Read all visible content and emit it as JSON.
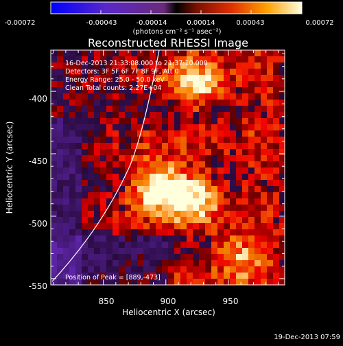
{
  "chart_data": {
    "type": "heatmap",
    "title": "Reconstructed RHESSI Image",
    "xlabel": "Heliocentric X (arcsec)",
    "ylabel": "Heliocentric Y (arcsec)",
    "xlim": [
      808,
      995
    ],
    "ylim": [
      -555,
      -367
    ],
    "xticks": [
      "850",
      "900",
      "950"
    ],
    "yticks": [
      "-400",
      "-450",
      "-500",
      "-550"
    ],
    "colorbar": {
      "ticks": [
        "-0.00072",
        "-0.00043",
        "-0.00014",
        "0.00014",
        "0.00043",
        "0.00072"
      ],
      "unit_label": "(photons cm⁻² s⁻¹ asec⁻²)",
      "range": [
        -0.00072,
        0.00072
      ]
    },
    "annotations": {
      "time": "16-Dec-2013 21:33:08.000 to 21:37:10.000",
      "detectors": "Detectors: 3F 5F 6F 7F 8F 9F, Att 0",
      "energy": "Energy Range: 25.0 - 50.0 keV",
      "clean": "Clean     Total counts: 2.27E+04",
      "peak": "Position of Peak = [889,-473]"
    },
    "sources": [
      {
        "x": 889,
        "y": -473,
        "peak_fraction": 1.0
      },
      {
        "x": 918,
        "y": -483,
        "peak_fraction": 0.92
      },
      {
        "x": 922,
        "y": -392,
        "peak_fraction": 0.75
      },
      {
        "x": 955,
        "y": -530,
        "peak_fraction": 0.55
      }
    ],
    "limb": "white curve crossing from lower-left to top",
    "timestamp": "19-Dec-2013 07:59"
  }
}
